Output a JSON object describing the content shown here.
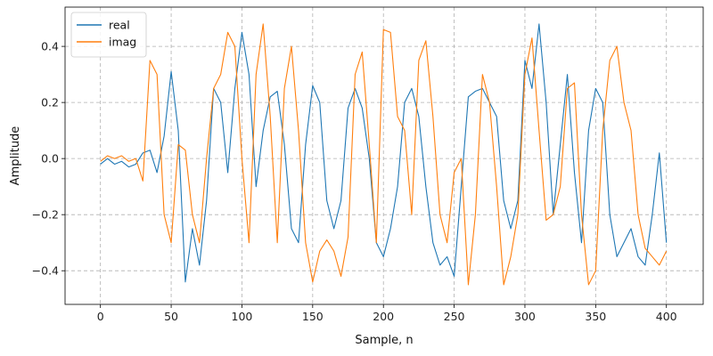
{
  "chart_data": {
    "type": "line",
    "title": "",
    "xlabel": "Sample, n",
    "ylabel": "Amplitude",
    "xlim": [
      -25,
      426
    ],
    "ylim": [
      -0.52,
      0.54
    ],
    "xticks": [
      0,
      50,
      100,
      150,
      200,
      250,
      300,
      350,
      400
    ],
    "yticks": [
      -0.4,
      -0.2,
      0.0,
      0.2,
      0.4
    ],
    "xtick_labels": [
      "0",
      "50",
      "100",
      "150",
      "200",
      "250",
      "300",
      "350",
      "400"
    ],
    "ytick_labels": [
      "−0.4",
      "−0.2",
      "0.0",
      "0.2",
      "0.4"
    ],
    "grid": true,
    "legend_position": "top-left",
    "series": [
      {
        "name": "real",
        "color": "#1f77b4",
        "x": [
          0,
          5,
          10,
          15,
          20,
          25,
          30,
          35,
          40,
          45,
          50,
          55,
          60,
          65,
          70,
          75,
          80,
          85,
          90,
          95,
          100,
          105,
          110,
          115,
          120,
          125,
          130,
          135,
          140,
          145,
          150,
          155,
          160,
          165,
          170,
          175,
          180,
          185,
          190,
          195,
          200,
          205,
          210,
          215,
          220,
          225,
          230,
          235,
          240,
          245,
          250,
          255,
          260,
          265,
          270,
          275,
          280,
          285,
          290,
          295,
          300,
          305,
          310,
          315,
          320,
          325,
          330,
          335,
          340,
          345,
          350,
          355,
          360,
          365,
          370,
          375,
          380,
          385,
          390,
          395,
          400
        ],
        "y": [
          -0.02,
          0.0,
          -0.02,
          -0.01,
          -0.03,
          -0.02,
          0.02,
          0.03,
          -0.05,
          0.08,
          0.31,
          0.1,
          -0.44,
          -0.25,
          -0.38,
          -0.15,
          0.25,
          0.2,
          -0.05,
          0.25,
          0.45,
          0.3,
          -0.1,
          0.1,
          0.22,
          0.24,
          0.05,
          -0.25,
          -0.3,
          0.05,
          0.26,
          0.2,
          -0.15,
          -0.25,
          -0.15,
          0.18,
          0.25,
          0.18,
          0.0,
          -0.3,
          -0.35,
          -0.25,
          -0.1,
          0.2,
          0.25,
          0.15,
          -0.1,
          -0.3,
          -0.38,
          -0.35,
          -0.42,
          -0.1,
          0.22,
          0.24,
          0.25,
          0.2,
          0.15,
          -0.15,
          -0.25,
          -0.15,
          0.35,
          0.25,
          0.48,
          0.2,
          -0.2,
          0.05,
          0.3,
          -0.05,
          -0.3,
          0.1,
          0.25,
          0.2,
          -0.2,
          -0.35,
          -0.3,
          -0.25,
          -0.35,
          -0.38,
          -0.2,
          0.02,
          -0.3
        ]
      },
      {
        "name": "imag",
        "color": "#ff7f0e",
        "x": [
          0,
          5,
          10,
          15,
          20,
          25,
          30,
          35,
          40,
          45,
          50,
          55,
          60,
          65,
          70,
          75,
          80,
          85,
          90,
          95,
          100,
          105,
          110,
          115,
          120,
          125,
          130,
          135,
          140,
          145,
          150,
          155,
          160,
          165,
          170,
          175,
          180,
          185,
          190,
          195,
          200,
          205,
          210,
          215,
          220,
          225,
          230,
          235,
          240,
          245,
          250,
          255,
          260,
          265,
          270,
          275,
          280,
          285,
          290,
          295,
          300,
          305,
          310,
          315,
          320,
          325,
          330,
          335,
          340,
          345,
          350,
          355,
          360,
          365,
          370,
          375,
          380,
          385,
          390,
          395,
          400
        ],
        "y": [
          -0.01,
          0.01,
          0.0,
          0.01,
          -0.01,
          0.0,
          -0.08,
          0.35,
          0.3,
          -0.2,
          -0.3,
          0.05,
          0.03,
          -0.2,
          -0.3,
          0.0,
          0.25,
          0.3,
          0.45,
          0.4,
          0.0,
          -0.3,
          0.3,
          0.48,
          0.15,
          -0.3,
          0.25,
          0.4,
          0.1,
          -0.3,
          -0.44,
          -0.33,
          -0.29,
          -0.33,
          -0.42,
          -0.28,
          0.3,
          0.38,
          0.05,
          -0.3,
          0.46,
          0.45,
          0.15,
          0.1,
          -0.2,
          0.35,
          0.42,
          0.15,
          -0.2,
          -0.3,
          -0.05,
          0.0,
          -0.45,
          -0.2,
          0.3,
          0.2,
          -0.1,
          -0.45,
          -0.35,
          -0.2,
          0.3,
          0.43,
          0.1,
          -0.22,
          -0.2,
          -0.1,
          0.25,
          0.27,
          -0.2,
          -0.45,
          -0.4,
          0.1,
          0.35,
          0.4,
          0.2,
          0.1,
          -0.2,
          -0.32,
          -0.35,
          -0.38,
          -0.33
        ]
      }
    ]
  }
}
